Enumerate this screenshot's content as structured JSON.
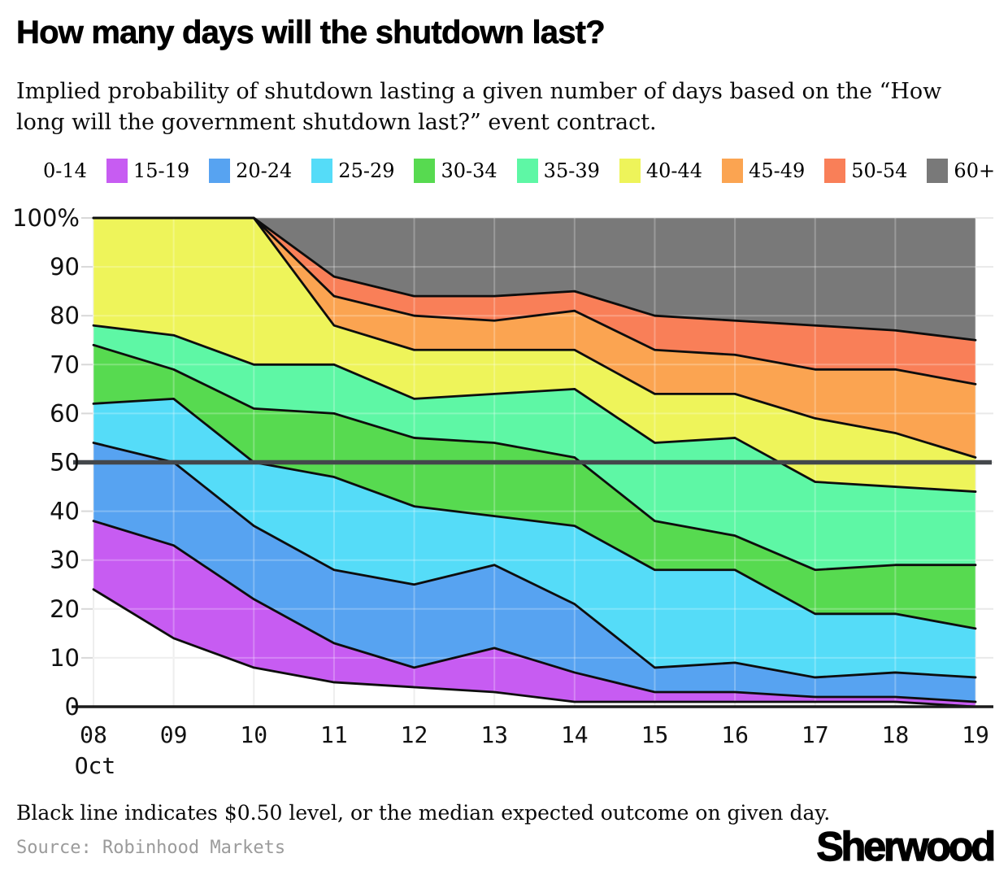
{
  "header": {
    "title": "How many days will the shutdown last?",
    "subtitle": "Implied probability of shutdown lasting a given number of days based on the “How long will the government shutdown last?” event contract."
  },
  "legend": {
    "items": [
      {
        "label": "0-14",
        "color": null
      },
      {
        "label": "15-19",
        "color": "#c75cf2"
      },
      {
        "label": "20-24",
        "color": "#57a3f1"
      },
      {
        "label": "25-29",
        "color": "#55dcf8"
      },
      {
        "label": "30-34",
        "color": "#57da50"
      },
      {
        "label": "35-39",
        "color": "#5ef7a5"
      },
      {
        "label": "40-44",
        "color": "#eef45a"
      },
      {
        "label": "45-49",
        "color": "#fba451"
      },
      {
        "label": "50-54",
        "color": "#f97f58"
      },
      {
        "label": "60+",
        "color": "#797979"
      }
    ]
  },
  "chart_data": {
    "type": "area",
    "stacked": true,
    "title": "How many days will the shutdown last?",
    "unit": "%",
    "grid": true,
    "x": [
      "08",
      "09",
      "10",
      "11",
      "12",
      "13",
      "14",
      "15",
      "16",
      "17",
      "18",
      "19"
    ],
    "x_month_label": "Oct",
    "y_ticks": [
      0,
      10,
      20,
      30,
      40,
      50,
      60,
      70,
      80,
      90,
      100
    ],
    "y_tick_labels": [
      "0",
      "10",
      "20",
      "30",
      "40",
      "50",
      "60",
      "70",
      "80",
      "90",
      "100%"
    ],
    "ylim": [
      0,
      100
    ],
    "median_line": {
      "value": 50,
      "label": "$0.50 level",
      "color": "#43474b"
    },
    "series": [
      {
        "name": "0-14",
        "color": "#ffffff",
        "values": [
          24,
          14,
          8,
          5,
          4,
          3,
          1,
          1,
          1,
          1,
          1,
          0
        ]
      },
      {
        "name": "15-19",
        "color": "#c75cf2",
        "values": [
          14,
          19,
          14,
          8,
          4,
          9,
          6,
          2,
          2,
          1,
          1,
          1
        ]
      },
      {
        "name": "20-24",
        "color": "#57a3f1",
        "values": [
          16,
          17,
          15,
          15,
          17,
          17,
          14,
          5,
          6,
          4,
          5,
          5
        ]
      },
      {
        "name": "25-29",
        "color": "#55dcf8",
        "values": [
          8,
          13,
          13,
          19,
          16,
          10,
          16,
          20,
          19,
          13,
          12,
          10
        ]
      },
      {
        "name": "30-34",
        "color": "#57da50",
        "values": [
          12,
          6,
          11,
          13,
          14,
          15,
          14,
          10,
          7,
          9,
          10,
          13
        ]
      },
      {
        "name": "35-39",
        "color": "#5ef7a5",
        "values": [
          4,
          7,
          9,
          10,
          8,
          10,
          14,
          16,
          20,
          18,
          16,
          15
        ]
      },
      {
        "name": "40-44",
        "color": "#eef45a",
        "values": [
          22,
          24,
          30,
          8,
          10,
          9,
          8,
          10,
          9,
          13,
          11,
          7
        ]
      },
      {
        "name": "45-49",
        "color": "#fba451",
        "values": [
          0,
          0,
          0,
          6,
          7,
          6,
          8,
          9,
          8,
          10,
          13,
          15
        ]
      },
      {
        "name": "50-54",
        "color": "#f97f58",
        "values": [
          0,
          0,
          0,
          4,
          4,
          5,
          4,
          7,
          7,
          9,
          8,
          9
        ]
      },
      {
        "name": "60+",
        "color": "#797979",
        "values": [
          0,
          0,
          0,
          12,
          16,
          16,
          15,
          20,
          21,
          22,
          23,
          25
        ]
      }
    ]
  },
  "footer": {
    "note": "Black line indicates $0.50 level, or the median expected outcome on given day.",
    "source": "Source: Robinhood Markets",
    "brand": "Sherwood"
  }
}
